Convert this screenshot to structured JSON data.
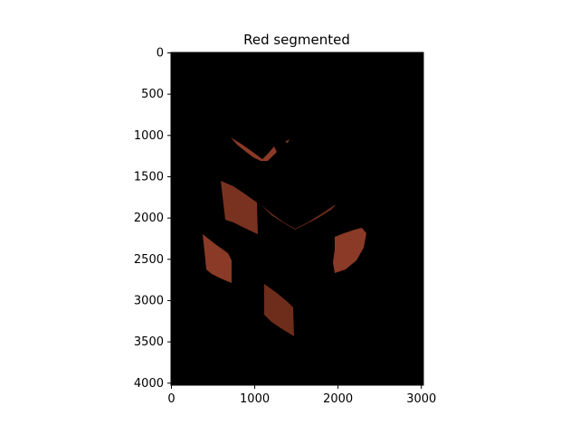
{
  "title": "Red segmented",
  "image": {
    "background": "#000000",
    "region_color": "#8a3a26",
    "region_shadow": "#5c2416",
    "extent": {
      "x": [
        0,
        3000
      ],
      "y": [
        0,
        4000
      ]
    }
  },
  "axes": {
    "x_ticks": [
      "0",
      "1000",
      "2000",
      "3000"
    ],
    "y_ticks": [
      "0",
      "500",
      "1000",
      "1500",
      "2000",
      "2500",
      "3000",
      "3500",
      "4000"
    ]
  }
}
